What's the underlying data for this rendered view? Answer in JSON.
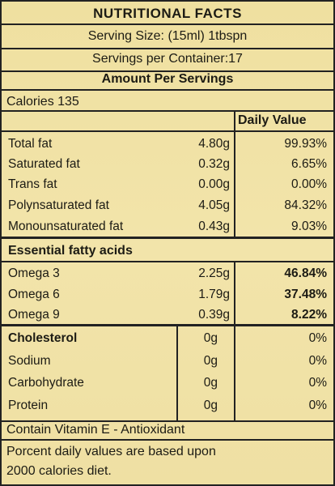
{
  "title": "NUTRITIONAL FACTS",
  "serving_size": "Serving Size: (15ml) 1tbspn",
  "servings_per_container": "Servings per Container:17",
  "amount_per": "Amount Per Servings",
  "calories": "Calories 135",
  "daily_value_header": "Daily Value",
  "fats": [
    {
      "name": "Total fat",
      "amount": "4.80g",
      "dv": "99.93%"
    },
    {
      "name": "Saturated fat",
      "amount": "0.32g",
      "dv": "6.65%"
    },
    {
      "name": "Trans fat",
      "amount": "0.00g",
      "dv": "0.00%"
    },
    {
      "name": "Polynsaturated fat",
      "amount": "4.05g",
      "dv": "84.32%"
    },
    {
      "name": "Monounsaturated fat",
      "amount": "0.43g",
      "dv": "9.03%"
    }
  ],
  "essential_header": "Essential fatty acids",
  "essential": [
    {
      "name": "Omega 3",
      "amount": "2.25g",
      "dv": "46.84%"
    },
    {
      "name": "Omega 6",
      "amount": "1.79g",
      "dv": "37.48%"
    },
    {
      "name": "Omega 9",
      "amount": "0.39g",
      "dv": "8.22%"
    }
  ],
  "others": [
    {
      "name": "Cholesterol",
      "amount": "0g",
      "dv": "0%"
    },
    {
      "name": "Sodium",
      "amount": "0g",
      "dv": "0%"
    },
    {
      "name": "Carbohydrate",
      "amount": "0g",
      "dv": "0%"
    },
    {
      "name": "Protein",
      "amount": "0g",
      "dv": "0%"
    }
  ],
  "vitamin_note": "Contain Vitamin E - Antioxidant",
  "footnote_line1": "Porcent daily values are based upon",
  "footnote_line2": "2000 calories diet."
}
